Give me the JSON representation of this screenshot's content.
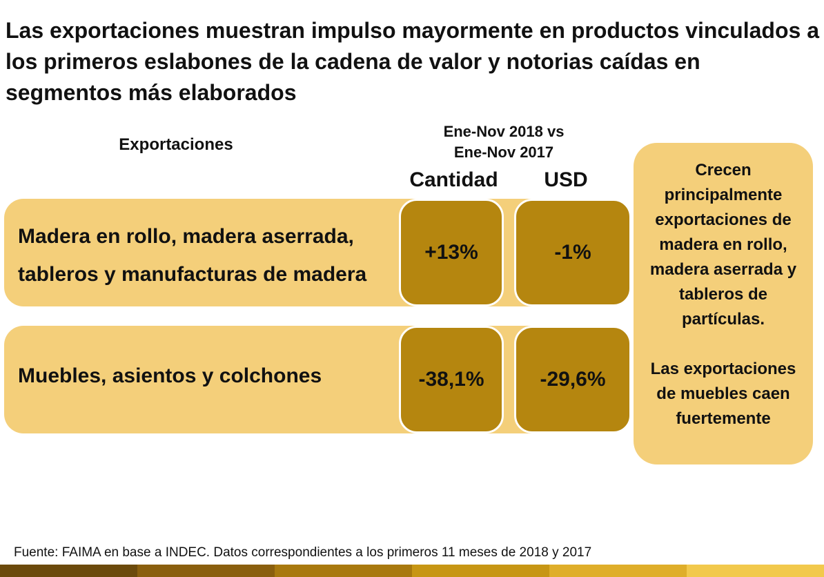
{
  "title": "Las exportaciones muestran impulso mayormente en productos vinculados a los primeros eslabones de la cadena de valor y notorias caídas en segmentos más elaborados",
  "headers": {
    "category": "Exportaciones",
    "period_line1": "Ene-Nov 2018 vs",
    "period_line2": "Ene-Nov 2017",
    "quantity": "Cantidad",
    "usd": "USD"
  },
  "rows": [
    {
      "label_line1": "Madera en rollo, madera aserrada,",
      "label_line2": "tableros y manufacturas de madera",
      "quantity": "+13%",
      "usd": "-1%"
    },
    {
      "label": "Muebles, asientos y colchones",
      "quantity": "-38,1%",
      "usd": "-29,6%"
    }
  ],
  "side_note": {
    "paragraph1": "Crecen principalmente exportaciones de madera en rollo, madera aserrada y tableros de partículas.",
    "paragraph2": "Las exportaciones de muebles caen fuertemente"
  },
  "source": "Fuente: FAIMA en base a INDEC. Datos correspondientes a los primeros 11 meses de 2018 y 2017",
  "colors": {
    "row_fill": "#f4cf7a",
    "value_fill": "#b5860f",
    "footer_strip": [
      "#6b4a0c",
      "#8a5f0e",
      "#a8790f",
      "#c79614",
      "#dfae2a",
      "#f2c94c"
    ]
  }
}
